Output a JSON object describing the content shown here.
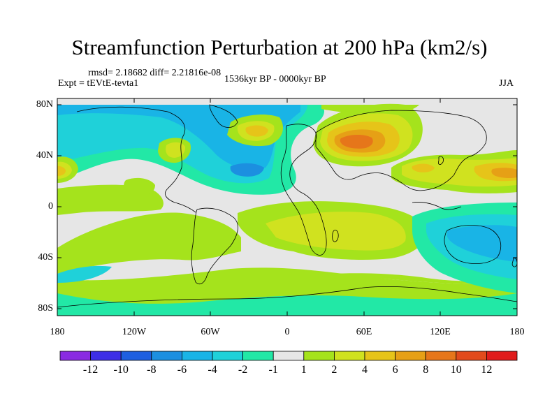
{
  "title": "Streamfunction Perturbation at 200 hPa (km2/s)",
  "stats": "rmsd= 2.18682  diff= 2.21816e-08",
  "experiment": "Expt = tEVtE-tevta1",
  "period": "1536kyr BP - 0000kyr BP",
  "season": "JJA",
  "map": {
    "lat_labels": [
      "80N",
      "40N",
      "0",
      "40S",
      "80S"
    ],
    "lon_labels": [
      "180",
      "120W",
      "60W",
      "0",
      "60E",
      "120E",
      "180"
    ]
  },
  "legend": {
    "labels": [
      "-12",
      "-10",
      "-8",
      "-6",
      "-4",
      "-2",
      "-1",
      "1",
      "2",
      "4",
      "6",
      "8",
      "10",
      "12"
    ],
    "colors": [
      "#8a2be2",
      "#3d2ee6",
      "#1e5fe0",
      "#1c8fe0",
      "#19b4e6",
      "#1fd1d9",
      "#22e8a6",
      "#e6e6e6",
      "#a5e31c",
      "#d0e21f",
      "#e6c419",
      "#e6a016",
      "#e6761a",
      "#e24a1c",
      "#e01c1c"
    ]
  },
  "colors": {
    "land_bg": "#e6e6e6",
    "coast": "#000000"
  }
}
